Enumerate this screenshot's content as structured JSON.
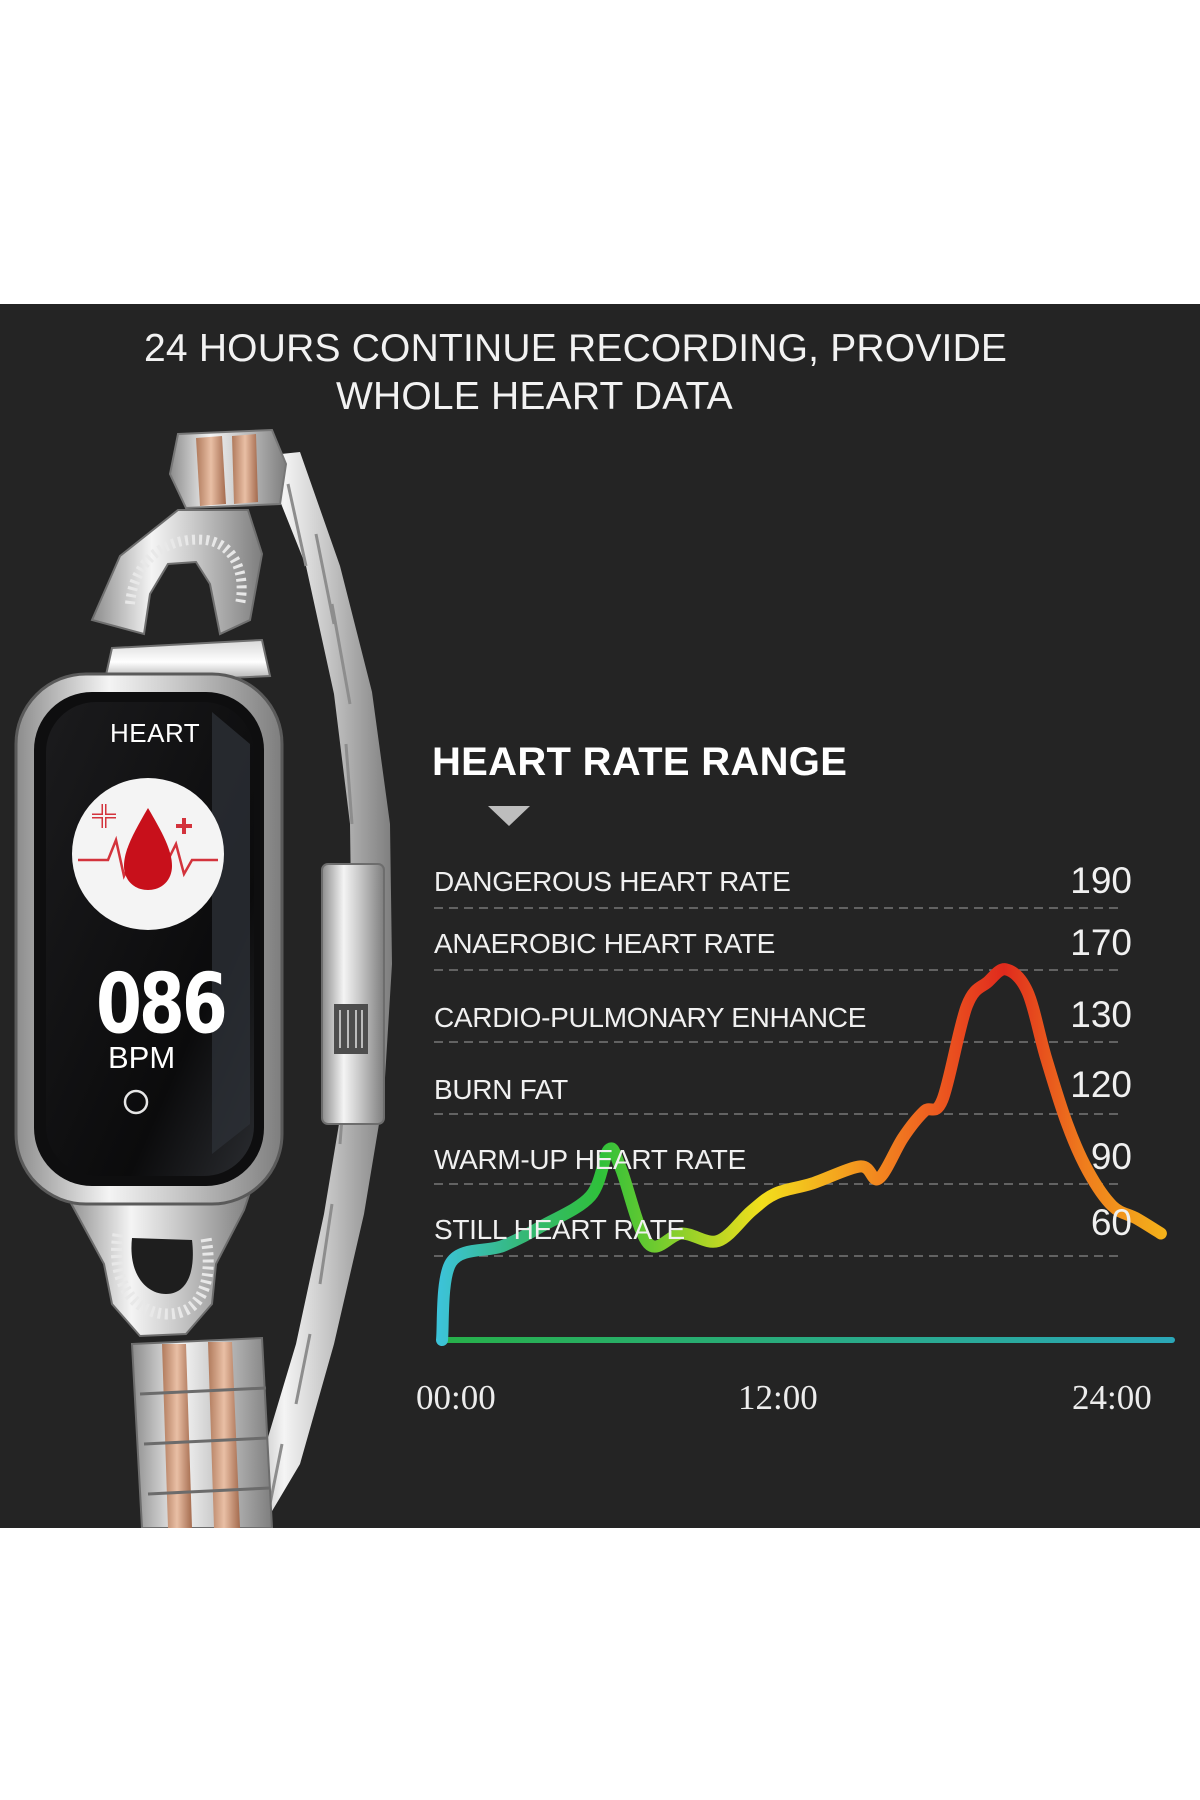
{
  "headline": {
    "line1": "24 HOURS CONTINUE RECORDING, PROVIDE",
    "line2": "WHOLE HEART DATA"
  },
  "watch": {
    "heart_label": "HEART",
    "bpm_value": "086",
    "bpm_unit": "BPM",
    "icon": "blood-drop-heartbeat-icon"
  },
  "chart_data": {
    "type": "line",
    "title": "HEART RATE RANGE",
    "zones": [
      {
        "label": "DANGEROUS HEART RATE",
        "value": 190
      },
      {
        "label": "ANAEROBIC HEART RATE",
        "value": 170
      },
      {
        "label": "CARDIO-PULMONARY ENHANCE",
        "value": 130
      },
      {
        "label": "BURN FAT",
        "value": 120
      },
      {
        "label": "WARM-UP HEART RATE",
        "value": 90
      },
      {
        "label": "STILL HEART RATE",
        "value": 60
      }
    ],
    "x_ticks": [
      "00:00",
      "12:00",
      "24:00"
    ],
    "xlim": [
      0,
      24
    ],
    "grid": true,
    "series": [
      {
        "x": [
          0,
          0.3,
          2.0,
          3.3,
          4.9,
          5.5,
          5.9,
          6.8,
          7.9,
          9.1,
          10.2,
          11.0,
          12.2,
          13.8,
          14.4,
          15.2,
          15.9,
          16.5,
          17.3,
          18.0,
          18.6,
          19.3,
          19.9,
          20.6,
          21.3,
          22.1,
          22.9,
          23.7
        ],
        "y": [
          0,
          48,
          62,
          70,
          82,
          101,
          93,
          63,
          67,
          64,
          76,
          83,
          87,
          94,
          89,
          106,
          117,
          121,
          160,
          172,
          176,
          168,
          132,
          112,
          92,
          78,
          73,
          67
        ]
      }
    ],
    "baseline": {
      "x": [
        0,
        24
      ],
      "y": [
        0,
        0
      ]
    },
    "colors": {
      "gradient": [
        "#3cc3d8",
        "#35b879",
        "#2fc03a",
        "#8dd02a",
        "#f2df1c",
        "#f4a11e",
        "#ef6420",
        "#e02a1d",
        "#ef7d1d",
        "#f4b21a"
      ],
      "baseline": [
        "#27b04a",
        "#2ba7b8"
      ],
      "background": "#242424",
      "grid": "#777777"
    }
  }
}
